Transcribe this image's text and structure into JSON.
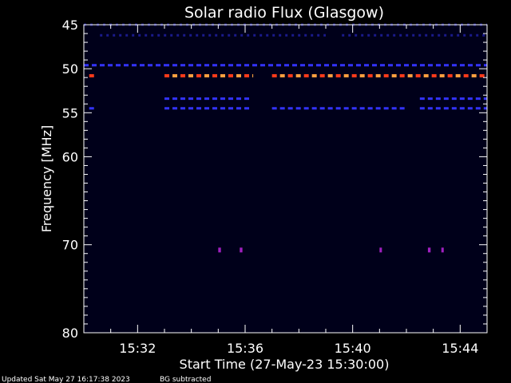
{
  "chart_data": {
    "type": "heatmap",
    "title": "Solar radio Flux (Glasgow)",
    "ylabel": "Frequency [MHz]",
    "xlabel": "Start Time (27-May-23 15:30:00)",
    "y_ticks": [
      "45",
      "50",
      "55",
      "60",
      "70",
      "80"
    ],
    "y_tick_values": [
      45,
      50,
      55,
      60,
      70,
      80
    ],
    "ylim": [
      80,
      45
    ],
    "x_ticks": [
      "15:32",
      "15:36",
      "15:40",
      "15:44"
    ],
    "x_tick_minutes": [
      2,
      6,
      10,
      14
    ],
    "xlim_minutes": [
      0,
      15
    ],
    "background_color": "#00001a",
    "bands": [
      {
        "freq": 45.0,
        "segments": [
          [
            0.0,
            15.0
          ]
        ],
        "level": "low"
      },
      {
        "freq": 46.2,
        "segments": [
          [
            0.6,
            9.0
          ],
          [
            9.6,
            15.0
          ]
        ],
        "level": "low"
      },
      {
        "freq": 49.6,
        "segments": [
          [
            0.0,
            3.0
          ],
          [
            3.0,
            15.0
          ]
        ],
        "level": "mid"
      },
      {
        "freq": 50.8,
        "segments": [
          [
            0.2,
            0.4
          ],
          [
            3.0,
            6.3
          ],
          [
            7.0,
            15.0
          ]
        ],
        "level": "high"
      },
      {
        "freq": 53.4,
        "segments": [
          [
            3.0,
            6.2
          ],
          [
            12.5,
            15.0
          ]
        ],
        "level": "mid"
      },
      {
        "freq": 54.5,
        "segments": [
          [
            0.2,
            0.4
          ],
          [
            3.0,
            6.2
          ],
          [
            7.0,
            12.0
          ],
          [
            12.5,
            15.0
          ]
        ],
        "level": "mid"
      },
      {
        "freq": 70.6,
        "segments": [
          [
            5.0,
            5.1
          ],
          [
            5.8,
            5.9
          ],
          [
            11.0,
            11.05
          ],
          [
            12.8,
            12.9
          ],
          [
            13.3,
            13.35
          ]
        ],
        "level": "spot"
      }
    ],
    "colors": {
      "low": "#1a1a8c",
      "mid": "#3333ff",
      "high": "#ff3a1a",
      "peak": "#ffa040",
      "spot": "#a020c0"
    }
  },
  "footer": {
    "updated": "Updated Sat May 27 16:17:38 2023",
    "note": "BG subtracted"
  }
}
